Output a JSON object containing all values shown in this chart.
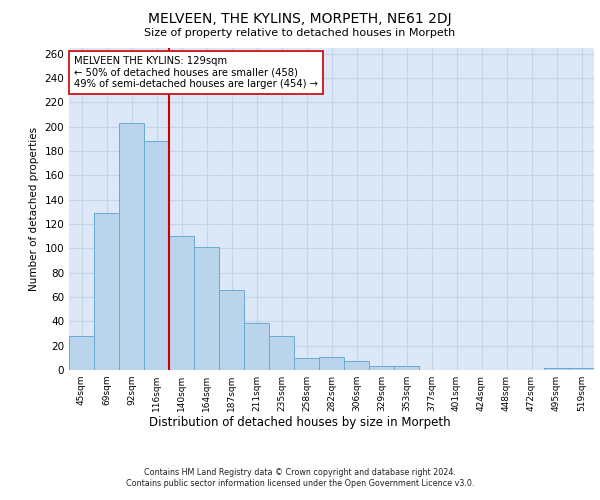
{
  "title": "MELVEEN, THE KYLINS, MORPETH, NE61 2DJ",
  "subtitle": "Size of property relative to detached houses in Morpeth",
  "xlabel": "Distribution of detached houses by size in Morpeth",
  "ylabel": "Number of detached properties",
  "bin_labels": [
    "45sqm",
    "69sqm",
    "92sqm",
    "116sqm",
    "140sqm",
    "164sqm",
    "187sqm",
    "211sqm",
    "235sqm",
    "258sqm",
    "282sqm",
    "306sqm",
    "329sqm",
    "353sqm",
    "377sqm",
    "401sqm",
    "424sqm",
    "448sqm",
    "472sqm",
    "495sqm",
    "519sqm"
  ],
  "bar_values": [
    28,
    129,
    203,
    188,
    110,
    101,
    66,
    39,
    28,
    10,
    11,
    7,
    3,
    3,
    0,
    0,
    0,
    0,
    0,
    2,
    2
  ],
  "bar_color": "#bad4ec",
  "bar_edge_color": "#6aaad4",
  "grid_color": "#c5d5e8",
  "background_color": "#dce8f8",
  "red_line_x": 3.5,
  "red_line_color": "#cc0000",
  "annotation_text": "MELVEEN THE KYLINS: 129sqm\n← 50% of detached houses are smaller (458)\n49% of semi-detached houses are larger (454) →",
  "annotation_box_color": "#ffffff",
  "annotation_border_color": "#cc0000",
  "ylim": [
    0,
    265
  ],
  "yticks": [
    0,
    20,
    40,
    60,
    80,
    100,
    120,
    140,
    160,
    180,
    200,
    220,
    240,
    260
  ],
  "footer_line1": "Contains HM Land Registry data © Crown copyright and database right 2024.",
  "footer_line2": "Contains public sector information licensed under the Open Government Licence v3.0."
}
